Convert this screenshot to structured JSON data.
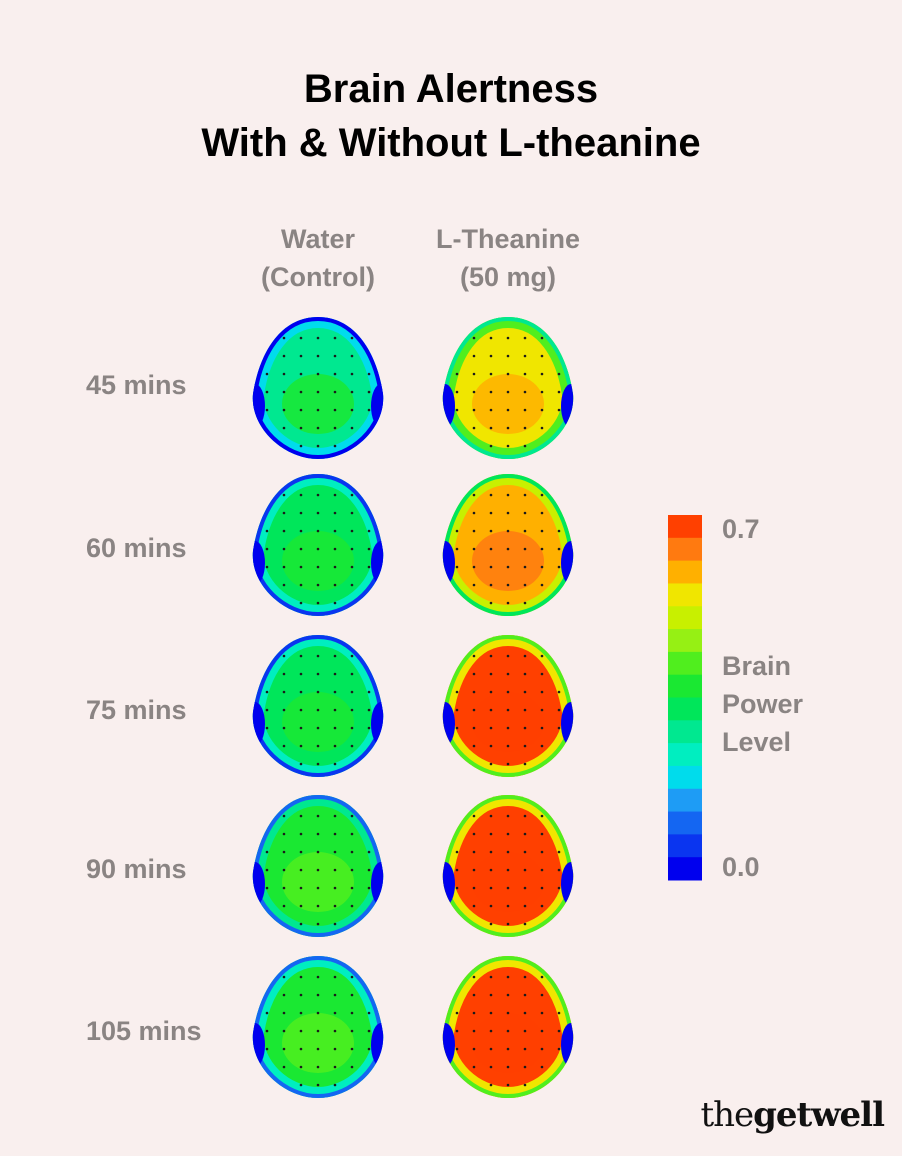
{
  "chart_data": {
    "type": "heatmap",
    "title_lines": [
      "Brain Alertness",
      "With & Without L-theanine"
    ],
    "columns": [
      {
        "lines": [
          "Water",
          "(Control)"
        ]
      },
      {
        "lines": [
          "L-Theanine",
          "(50 mg)"
        ]
      }
    ],
    "rows": [
      "45 mins",
      "60 mins",
      "75 mins",
      "90 mins",
      "105 mins"
    ],
    "colorbar": {
      "max_label": "0.7",
      "min_label": "0.0",
      "min": 0.0,
      "max": 0.7,
      "title_lines": [
        "Brain",
        "Power",
        "Level"
      ],
      "colors": [
        "#0000ee",
        "#0a35f0",
        "#1466f2",
        "#1e9cf5",
        "#00dcec",
        "#00eec0",
        "#00e890",
        "#00e65a",
        "#1ae832",
        "#50ee1e",
        "#96f014",
        "#c8f000",
        "#f0e600",
        "#ffb000",
        "#ff7a10",
        "#ff4000"
      ]
    },
    "approx_mean_power": {
      "water_control": [
        0.3,
        0.34,
        0.34,
        0.38,
        0.37
      ],
      "l_theanine_50mg": [
        0.56,
        0.62,
        0.68,
        0.68,
        0.69
      ]
    }
  },
  "brand": {
    "prefix": "the",
    "suffix": "getwell"
  }
}
